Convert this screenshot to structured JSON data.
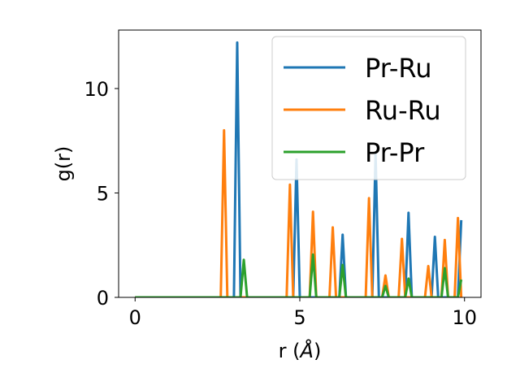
{
  "chart_data": {
    "type": "line",
    "title": "",
    "xlabel": "r (",
    "xlabel_unit": "Å",
    "xlabel_close": ")",
    "ylabel": "g(r)",
    "xlim": [
      -0.5,
      10.5
    ],
    "ylim": [
      0,
      12.8
    ],
    "xticks": [
      0,
      5,
      10
    ],
    "yticks": [
      0,
      5,
      10
    ],
    "grid": false,
    "legend_position": "top-right",
    "series": [
      {
        "name": "Pr-Ru",
        "color": "#1f77b4",
        "x": [
          0,
          2.9,
          3.0,
          3.1,
          3.2,
          3.3,
          4.8,
          4.9,
          5.0,
          6.2,
          6.3,
          6.4,
          7.2,
          7.3,
          7.4,
          8.2,
          8.3,
          8.4,
          9.0,
          9.1,
          9.2,
          9.8,
          9.9
        ],
        "values": [
          0,
          0,
          0,
          12.2,
          0,
          0,
          0,
          6.6,
          0,
          0,
          3.0,
          0,
          0,
          6.9,
          0,
          0,
          4.05,
          0,
          0,
          2.9,
          0,
          0,
          3.7
        ]
      },
      {
        "name": "Ru-Ru",
        "color": "#ff7f0e",
        "x": [
          0,
          2.6,
          2.7,
          2.8,
          4.6,
          4.7,
          4.8,
          5.3,
          5.4,
          5.5,
          5.9,
          6.0,
          6.1,
          7.0,
          7.1,
          7.2,
          7.5,
          7.6,
          7.7,
          8.0,
          8.1,
          8.2,
          8.8,
          8.9,
          9.0,
          9.3,
          9.4,
          9.5,
          9.7,
          9.8,
          9.9
        ],
        "values": [
          0,
          0,
          8.0,
          0,
          0,
          5.4,
          0,
          0,
          4.1,
          0,
          0,
          3.35,
          0,
          0,
          4.75,
          0,
          0,
          1.05,
          0,
          0,
          2.8,
          0,
          0,
          1.5,
          0,
          0,
          2.75,
          0,
          0,
          3.8,
          0
        ]
      },
      {
        "name": "Pr-Pr",
        "color": "#2ca02c",
        "x": [
          0,
          3.2,
          3.3,
          3.4,
          5.3,
          5.4,
          5.5,
          6.2,
          6.3,
          6.4,
          7.5,
          7.6,
          7.7,
          8.2,
          8.3,
          8.4,
          9.3,
          9.4,
          9.5,
          9.8,
          9.9
        ],
        "values": [
          0,
          0,
          1.8,
          0,
          0,
          2.05,
          0,
          0,
          1.55,
          0,
          0,
          0.55,
          0,
          0,
          0.9,
          0,
          0,
          1.4,
          0,
          0,
          0.85
        ]
      }
    ]
  }
}
